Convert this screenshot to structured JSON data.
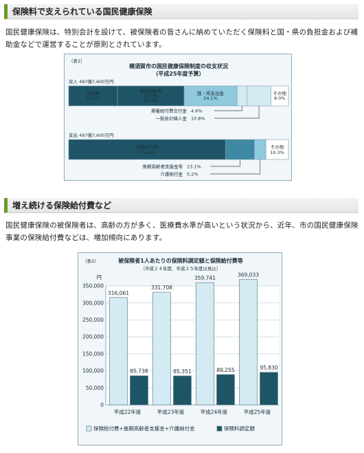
{
  "section1": {
    "heading": "保険料で支えられている国民健康保険",
    "paragraph_line1": "国民健康保険は、特別会計を設けて、被保険者の皆さんに納めていただく保険料と国・県の負担金および補",
    "paragraph_line2": "助金などで運営することが原則とされています。"
  },
  "section2": {
    "heading": "増え続ける保険給付費など",
    "paragraph_line1": "国民健康保険の被保険者は、高齢の方が多く、医療費水準が高いという状況から、近年、市の国民健康保険",
    "paragraph_line2": "事業の保険給付費などは、増加傾向にあります。"
  },
  "colors": {
    "dark": "#1e5566",
    "mid": "#3f88a4",
    "light": "#8ec9de",
    "pale": "#d4ebf4",
    "stroke": "#7f9aa6"
  },
  "figure1": {
    "label": "（表1）",
    "title": "横須賀市の国民健康保険制度の収支状況",
    "subtitle": "（平成25年度予算）",
    "revenue": {
      "label": "収入 497億7,600万円",
      "segments": [
        {
          "name": "保険料",
          "value": "22.2%",
          "percent": 22.2,
          "color": "dark",
          "text": "light"
        },
        {
          "name": "前期高齢者交付金",
          "value": "30.3%",
          "percent": 30.3,
          "color": "dark",
          "text": "light"
        },
        {
          "name": "国・県支出金",
          "value": "24.1%",
          "percent": 24.1,
          "color": "light",
          "text": "dark"
        },
        {
          "name": "療養給付費交付金",
          "value": "4.6%",
          "percent": 4.6,
          "color": "pale",
          "text": "dark"
        },
        {
          "name": "一般会計繰入金",
          "value": "10.8%",
          "percent": 10.8,
          "color": "pale",
          "text": "dark"
        },
        {
          "name": "その他",
          "value": "8.0%",
          "percent": 8.0,
          "color": "white",
          "text": "dark"
        }
      ],
      "name_lines": {
        "front": [
          "前期高齢者",
          "交付金"
        ]
      }
    },
    "expenditure": {
      "label": "支出 497億7,600万円",
      "segments": [
        {
          "name": "保険給付費",
          "value": "71.4%",
          "percent": 71.4,
          "color": "dark"
        },
        {
          "name": "後期高齢者支援金等",
          "value": "13.1%",
          "percent": 13.1,
          "color": "mid"
        },
        {
          "name": "介護納付金",
          "value": "5.2%",
          "percent": 5.2,
          "color": "light"
        },
        {
          "name": "その他",
          "value": "10.3%",
          "percent": 10.3,
          "color": "white"
        }
      ]
    }
  },
  "figure2": {
    "label": "（表2）",
    "title": "被保険者1人あたりの保険料調定額と保険給付費等",
    "subtitle": "（平成２４年度、平成２５年度は見込）",
    "unit": "円",
    "chart_data": {
      "type": "bar",
      "title": "被保険者1人あたりの保険料調定額と保険給付費等",
      "categories": [
        "平成22年度",
        "平成23年度",
        "平成24年度",
        "平成25年度"
      ],
      "series": [
        {
          "name": "保険給付費+後期高齢者支援金+介護納付金",
          "values": [
            316061,
            331708,
            359741,
            369033
          ],
          "labels": [
            "316,061",
            "331,708",
            "359,741",
            "369,033"
          ],
          "color": "#d4ebf4"
        },
        {
          "name": "保険料調定額",
          "values": [
            85738,
            85351,
            89255,
            95830
          ],
          "labels": [
            "85,738",
            "85,351",
            "89,255",
            "95,830"
          ],
          "color": "#1e5566"
        }
      ],
      "ylim": [
        0,
        350000
      ],
      "yticks": [
        0,
        50000,
        100000,
        150000,
        200000,
        250000,
        300000,
        350000
      ],
      "ytick_labels": [
        "0",
        "50,000",
        "100,000",
        "150,000",
        "200,000",
        "250,000",
        "300,000",
        "350,000"
      ],
      "ylabel": "円",
      "grid": true,
      "legend": "bottom"
    }
  }
}
